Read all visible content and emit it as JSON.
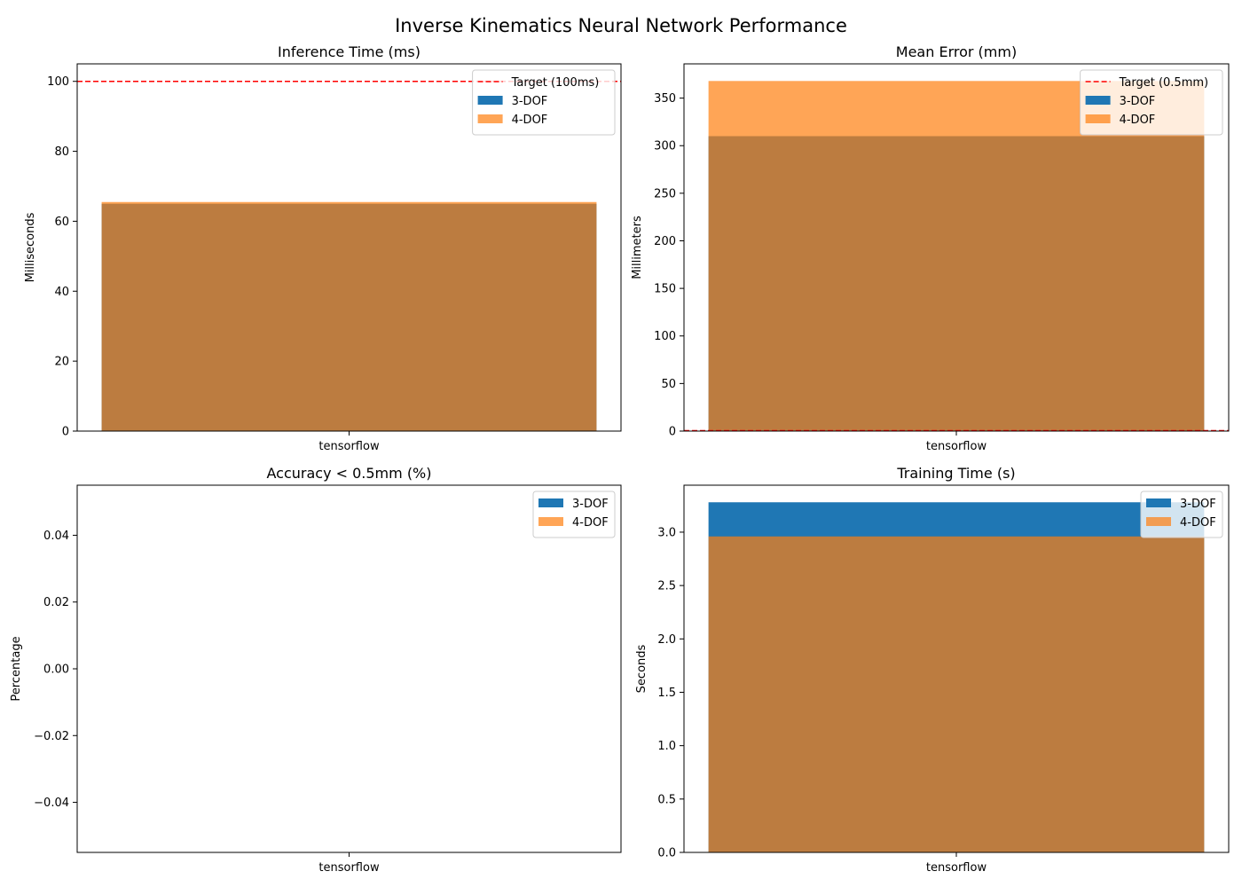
{
  "figure": {
    "suptitle": "Inverse Kinematics Neural Network Performance"
  },
  "colors": {
    "dof3": "#1f77b4",
    "dof4": "#ff7f0e",
    "dof4_alpha": 0.7,
    "target": "#ff0000"
  },
  "chart_data": [
    {
      "type": "bar",
      "title": "Inference Time (ms)",
      "xlabel": "",
      "ylabel": "Milliseconds",
      "categories": [
        "tensorflow"
      ],
      "series": [
        {
          "name": "3-DOF",
          "values": [
            65
          ]
        },
        {
          "name": "4-DOF",
          "values": [
            65.5
          ]
        }
      ],
      "reference_line": {
        "label": "Target (100ms)",
        "value": 100,
        "style": "dashed"
      },
      "ylim": [
        0,
        105
      ],
      "yticks": [
        0,
        20,
        40,
        60,
        80,
        100
      ],
      "ytick_labels": [
        "0",
        "20",
        "40",
        "60",
        "80",
        "100"
      ],
      "legend": "top-right",
      "grid": false
    },
    {
      "type": "bar",
      "title": "Mean Error (mm)",
      "xlabel": "",
      "ylabel": "Millimeters",
      "categories": [
        "tensorflow"
      ],
      "series": [
        {
          "name": "3-DOF",
          "values": [
            310
          ]
        },
        {
          "name": "4-DOF",
          "values": [
            368
          ]
        }
      ],
      "reference_line": {
        "label": "Target (0.5mm)",
        "value": 0.5,
        "style": "dashed"
      },
      "ylim": [
        0,
        386
      ],
      "yticks": [
        0,
        50,
        100,
        150,
        200,
        250,
        300,
        350
      ],
      "ytick_labels": [
        "0",
        "50",
        "100",
        "150",
        "200",
        "250",
        "300",
        "350"
      ],
      "legend": "top-right",
      "grid": false
    },
    {
      "type": "bar",
      "title": "Accuracy < 0.5mm (%)",
      "xlabel": "",
      "ylabel": "Percentage",
      "categories": [
        "tensorflow"
      ],
      "series": [
        {
          "name": "3-DOF",
          "values": [
            0
          ]
        },
        {
          "name": "4-DOF",
          "values": [
            0
          ]
        }
      ],
      "ylim": [
        -0.055,
        0.055
      ],
      "yticks": [
        -0.04,
        -0.02,
        0.0,
        0.02,
        0.04
      ],
      "ytick_labels": [
        "−0.04",
        "−0.02",
        "0.00",
        "0.02",
        "0.04"
      ],
      "legend": "top-right",
      "grid": false
    },
    {
      "type": "bar",
      "title": "Training Time (s)",
      "xlabel": "",
      "ylabel": "Seconds",
      "categories": [
        "tensorflow"
      ],
      "series": [
        {
          "name": "3-DOF",
          "values": [
            3.28
          ]
        },
        {
          "name": "4-DOF",
          "values": [
            2.96
          ]
        }
      ],
      "ylim": [
        0,
        3.44
      ],
      "yticks": [
        0,
        0.5,
        1.0,
        1.5,
        2.0,
        2.5,
        3.0
      ],
      "ytick_labels": [
        "0.0",
        "0.5",
        "1.0",
        "1.5",
        "2.0",
        "2.5",
        "3.0"
      ],
      "legend": "top-right",
      "grid": false
    }
  ]
}
